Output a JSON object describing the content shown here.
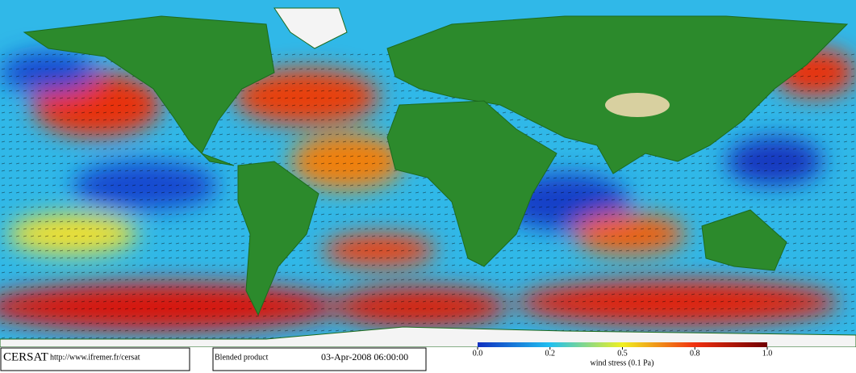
{
  "footer": {
    "logo": "CERSAT",
    "url": "http://www.ifremer.fr/cersat",
    "product": "Blended product",
    "date": "03-Apr-2008 06:00:00"
  },
  "colorbar": {
    "label": "wind stress (0.1 Pa)",
    "ticks": [
      {
        "value": 0,
        "label": "0.0"
      },
      0.2,
      0.5,
      0.8,
      {
        "value": 1,
        "label": "1.0"
      }
    ]
  }
}
